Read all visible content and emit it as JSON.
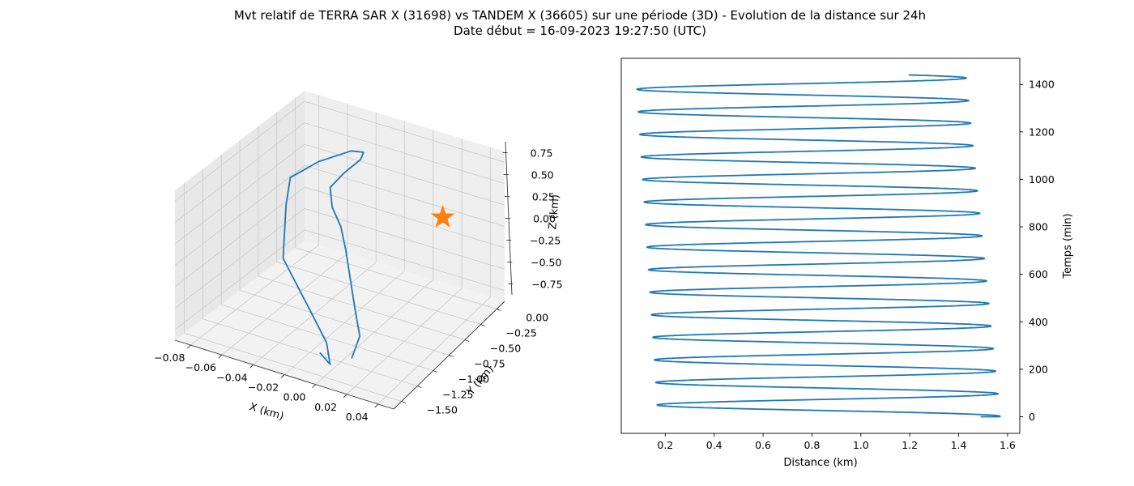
{
  "figure": {
    "title_line1": "Mvt relatif de TERRA SAR X (31698) vs TANDEM X (36605) sur une période (3D) - Evolution de la distance sur 24h",
    "title_line2": "Date début = 16-09-2023 19:27:50 (UTC)"
  },
  "colors": {
    "series": "#1f77b4",
    "marker": "#ff7f0e",
    "grid": "#b0b0b0",
    "pane": "#f2f2f2"
  },
  "chart_data": [
    {
      "type": "line3d",
      "xlabel": "X (km)",
      "ylabel": "Y (km)",
      "zlabel": "Z (km)",
      "x_ticks": [
        "−0.08",
        "−0.06",
        "−0.04",
        "−0.02",
        "0.00",
        "0.02",
        "0.04"
      ],
      "y_ticks": [
        "0.00",
        "−0.25",
        "−0.50",
        "−0.75",
        "−1.00",
        "−1.25",
        "−1.50"
      ],
      "z_ticks": [
        "0.75",
        "0.50",
        "0.25",
        "0.00",
        "−0.25",
        "−0.50",
        "−0.75"
      ],
      "xlim": [
        -0.09,
        0.045
      ],
      "ylim": [
        -1.6,
        0.1
      ],
      "zlim": [
        -0.9,
        0.9
      ],
      "grid": true,
      "marker": {
        "symbol": "star",
        "x": 0.0,
        "y": 0.0,
        "z": 0.0
      },
      "series": [
        {
          "points": [
            [
              -0.01,
              -1.4,
              -0.7
            ],
            [
              -0.006,
              -1.35,
              -0.85
            ],
            [
              -0.02,
              -1.1,
              -0.85
            ],
            [
              -0.045,
              -0.8,
              -0.8
            ],
            [
              -0.075,
              -0.5,
              -0.6
            ],
            [
              -0.085,
              -0.25,
              -0.2
            ],
            [
              -0.08,
              -0.3,
              0.2
            ],
            [
              -0.06,
              -0.35,
              0.55
            ],
            [
              -0.04,
              -0.35,
              0.8
            ],
            [
              -0.03,
              -0.4,
              0.88
            ],
            [
              -0.031,
              -0.42,
              0.8
            ],
            [
              -0.04,
              -0.45,
              0.6
            ],
            [
              -0.045,
              -0.52,
              0.45
            ],
            [
              -0.04,
              -0.6,
              0.3
            ],
            [
              -0.03,
              -0.7,
              0.2
            ],
            [
              -0.02,
              -0.85,
              0.1
            ],
            [
              -0.01,
              -1.0,
              -0.1
            ],
            [
              0.0,
              -1.15,
              -0.3
            ],
            [
              0.01,
              -1.3,
              -0.45
            ],
            [
              0.012,
              -1.45,
              -0.6
            ]
          ]
        }
      ]
    },
    {
      "type": "line",
      "xlabel": "Distance (km)",
      "ylabel": "Temps (min)",
      "xlim": [
        0.02,
        1.65
      ],
      "ylim": [
        -70,
        1510
      ],
      "x_ticks": [
        0.2,
        0.4,
        0.6,
        0.8,
        1.0,
        1.2,
        1.4,
        1.6
      ],
      "y_ticks": [
        0,
        200,
        400,
        600,
        800,
        1000,
        1200,
        1400
      ],
      "y_axis_position": "right",
      "oscillation": {
        "period_min": 95,
        "first_peak_min": 2,
        "last_min": 1440,
        "max_distance_start": 1.57,
        "max_distance_end": 1.43,
        "min_distance_start": 0.17,
        "min_distance_end": 0.08
      },
      "series": [
        {
          "color": "#1f77b4"
        }
      ]
    }
  ]
}
